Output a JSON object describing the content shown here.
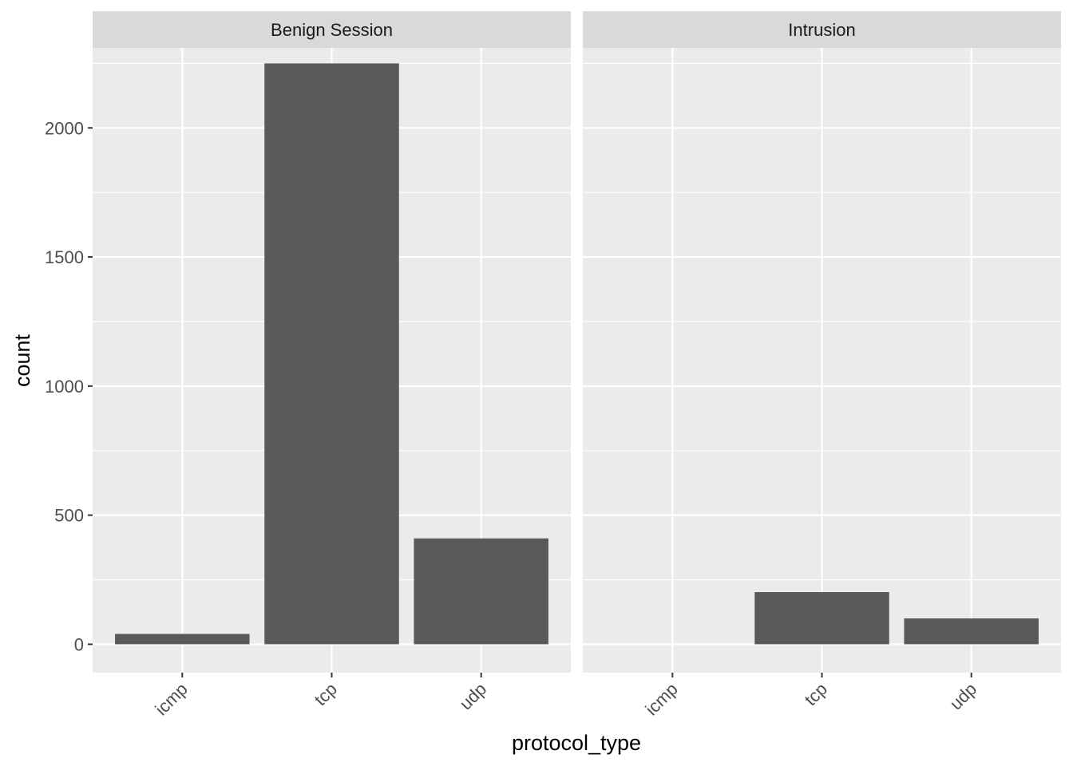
{
  "chart_data": {
    "type": "bar",
    "facet_by": "class",
    "xlabel": "protocol_type",
    "ylabel": "count",
    "categories": [
      "icmp",
      "tcp",
      "udp"
    ],
    "ylim": [
      -110,
      2310
    ],
    "yticks": [
      0,
      500,
      1000,
      1500,
      2000
    ],
    "grid": true,
    "panel_background": "#ebebeb",
    "strip_background": "#d9d9d9",
    "bar_color": "#595959",
    "panels": [
      {
        "label": "Benign Session",
        "values": [
          40,
          2250,
          410
        ]
      },
      {
        "label": "Intrusion",
        "values": [
          0,
          202,
          100
        ]
      }
    ]
  }
}
